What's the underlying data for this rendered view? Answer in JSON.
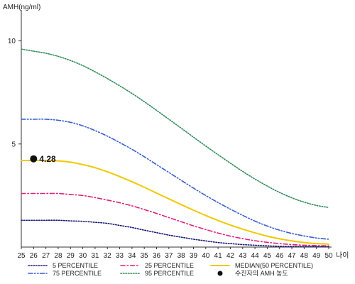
{
  "chart_data": {
    "type": "line",
    "ylabel": "AMH(ng/ml)",
    "xlabel": "나이",
    "x": [
      25,
      26,
      27,
      28,
      29,
      30,
      31,
      32,
      33,
      34,
      35,
      36,
      37,
      38,
      39,
      40,
      41,
      42,
      43,
      44,
      45,
      46,
      47,
      48,
      49,
      50
    ],
    "xlim": [
      25,
      50
    ],
    "ylim": [
      0,
      11.5
    ],
    "yticks": [
      5,
      10
    ],
    "series": [
      {
        "name": "5 PERCENTILE",
        "color": "#1a1a7a",
        "dash": "dotted",
        "values": [
          1.3,
          1.3,
          1.3,
          1.3,
          1.27,
          1.25,
          1.2,
          1.15,
          1.05,
          0.95,
          0.82,
          0.7,
          0.58,
          0.48,
          0.38,
          0.3,
          0.22,
          0.17,
          0.12,
          0.09,
          0.06,
          0.04,
          0.03,
          0.02,
          0.02,
          0.01
        ]
      },
      {
        "name": "25 PERCENTILE",
        "color": "#e0207a",
        "dash": "dashdot",
        "values": [
          2.6,
          2.6,
          2.6,
          2.6,
          2.55,
          2.5,
          2.4,
          2.28,
          2.15,
          2.0,
          1.82,
          1.63,
          1.43,
          1.23,
          1.03,
          0.85,
          0.68,
          0.53,
          0.41,
          0.31,
          0.23,
          0.17,
          0.12,
          0.09,
          0.07,
          0.06
        ]
      },
      {
        "name": "MEDIAN(50 PERCENTILE)",
        "color": "#f0c800",
        "dash": "solid",
        "values": [
          4.2,
          4.2,
          4.2,
          4.18,
          4.12,
          4.0,
          3.85,
          3.65,
          3.42,
          3.17,
          2.9,
          2.62,
          2.34,
          2.06,
          1.79,
          1.53,
          1.29,
          1.07,
          0.87,
          0.69,
          0.53,
          0.4,
          0.3,
          0.22,
          0.17,
          0.14
        ]
      },
      {
        "name": "75 PERCENTILE",
        "color": "#3a5fcd",
        "dash": "dashdotdot",
        "values": [
          6.2,
          6.2,
          6.2,
          6.15,
          6.05,
          5.88,
          5.65,
          5.38,
          5.07,
          4.74,
          4.38,
          4.0,
          3.62,
          3.24,
          2.86,
          2.5,
          2.16,
          1.84,
          1.54,
          1.26,
          1.02,
          0.82,
          0.66,
          0.54,
          0.44,
          0.38
        ]
      },
      {
        "name": "95 PERCENTILE",
        "color": "#2e8b57",
        "dash": "dotted",
        "values": [
          9.6,
          9.5,
          9.4,
          9.25,
          9.05,
          8.8,
          8.5,
          8.17,
          7.82,
          7.45,
          7.05,
          6.63,
          6.2,
          5.77,
          5.33,
          4.9,
          4.48,
          4.07,
          3.67,
          3.3,
          2.96,
          2.65,
          2.39,
          2.18,
          2.02,
          1.92
        ]
      }
    ],
    "points": [
      {
        "name": "수진자의 AMH 농도",
        "x": 26,
        "y": 4.28,
        "label": "4.28"
      }
    ],
    "legend": [
      {
        "series": 0,
        "label": "5 PERCENTILE"
      },
      {
        "series": 1,
        "label": "25 PERCENTILE"
      },
      {
        "series": 2,
        "label": "MEDIAN(50 PERCENTILE)"
      },
      {
        "series": 3,
        "label": "75 PERCENTILE"
      },
      {
        "series": 4,
        "label": "95 PERCENTILE"
      },
      {
        "point": 0,
        "label": "수진자의 AMH 농도"
      }
    ],
    "grid": false,
    "legend_position": "bottom"
  }
}
